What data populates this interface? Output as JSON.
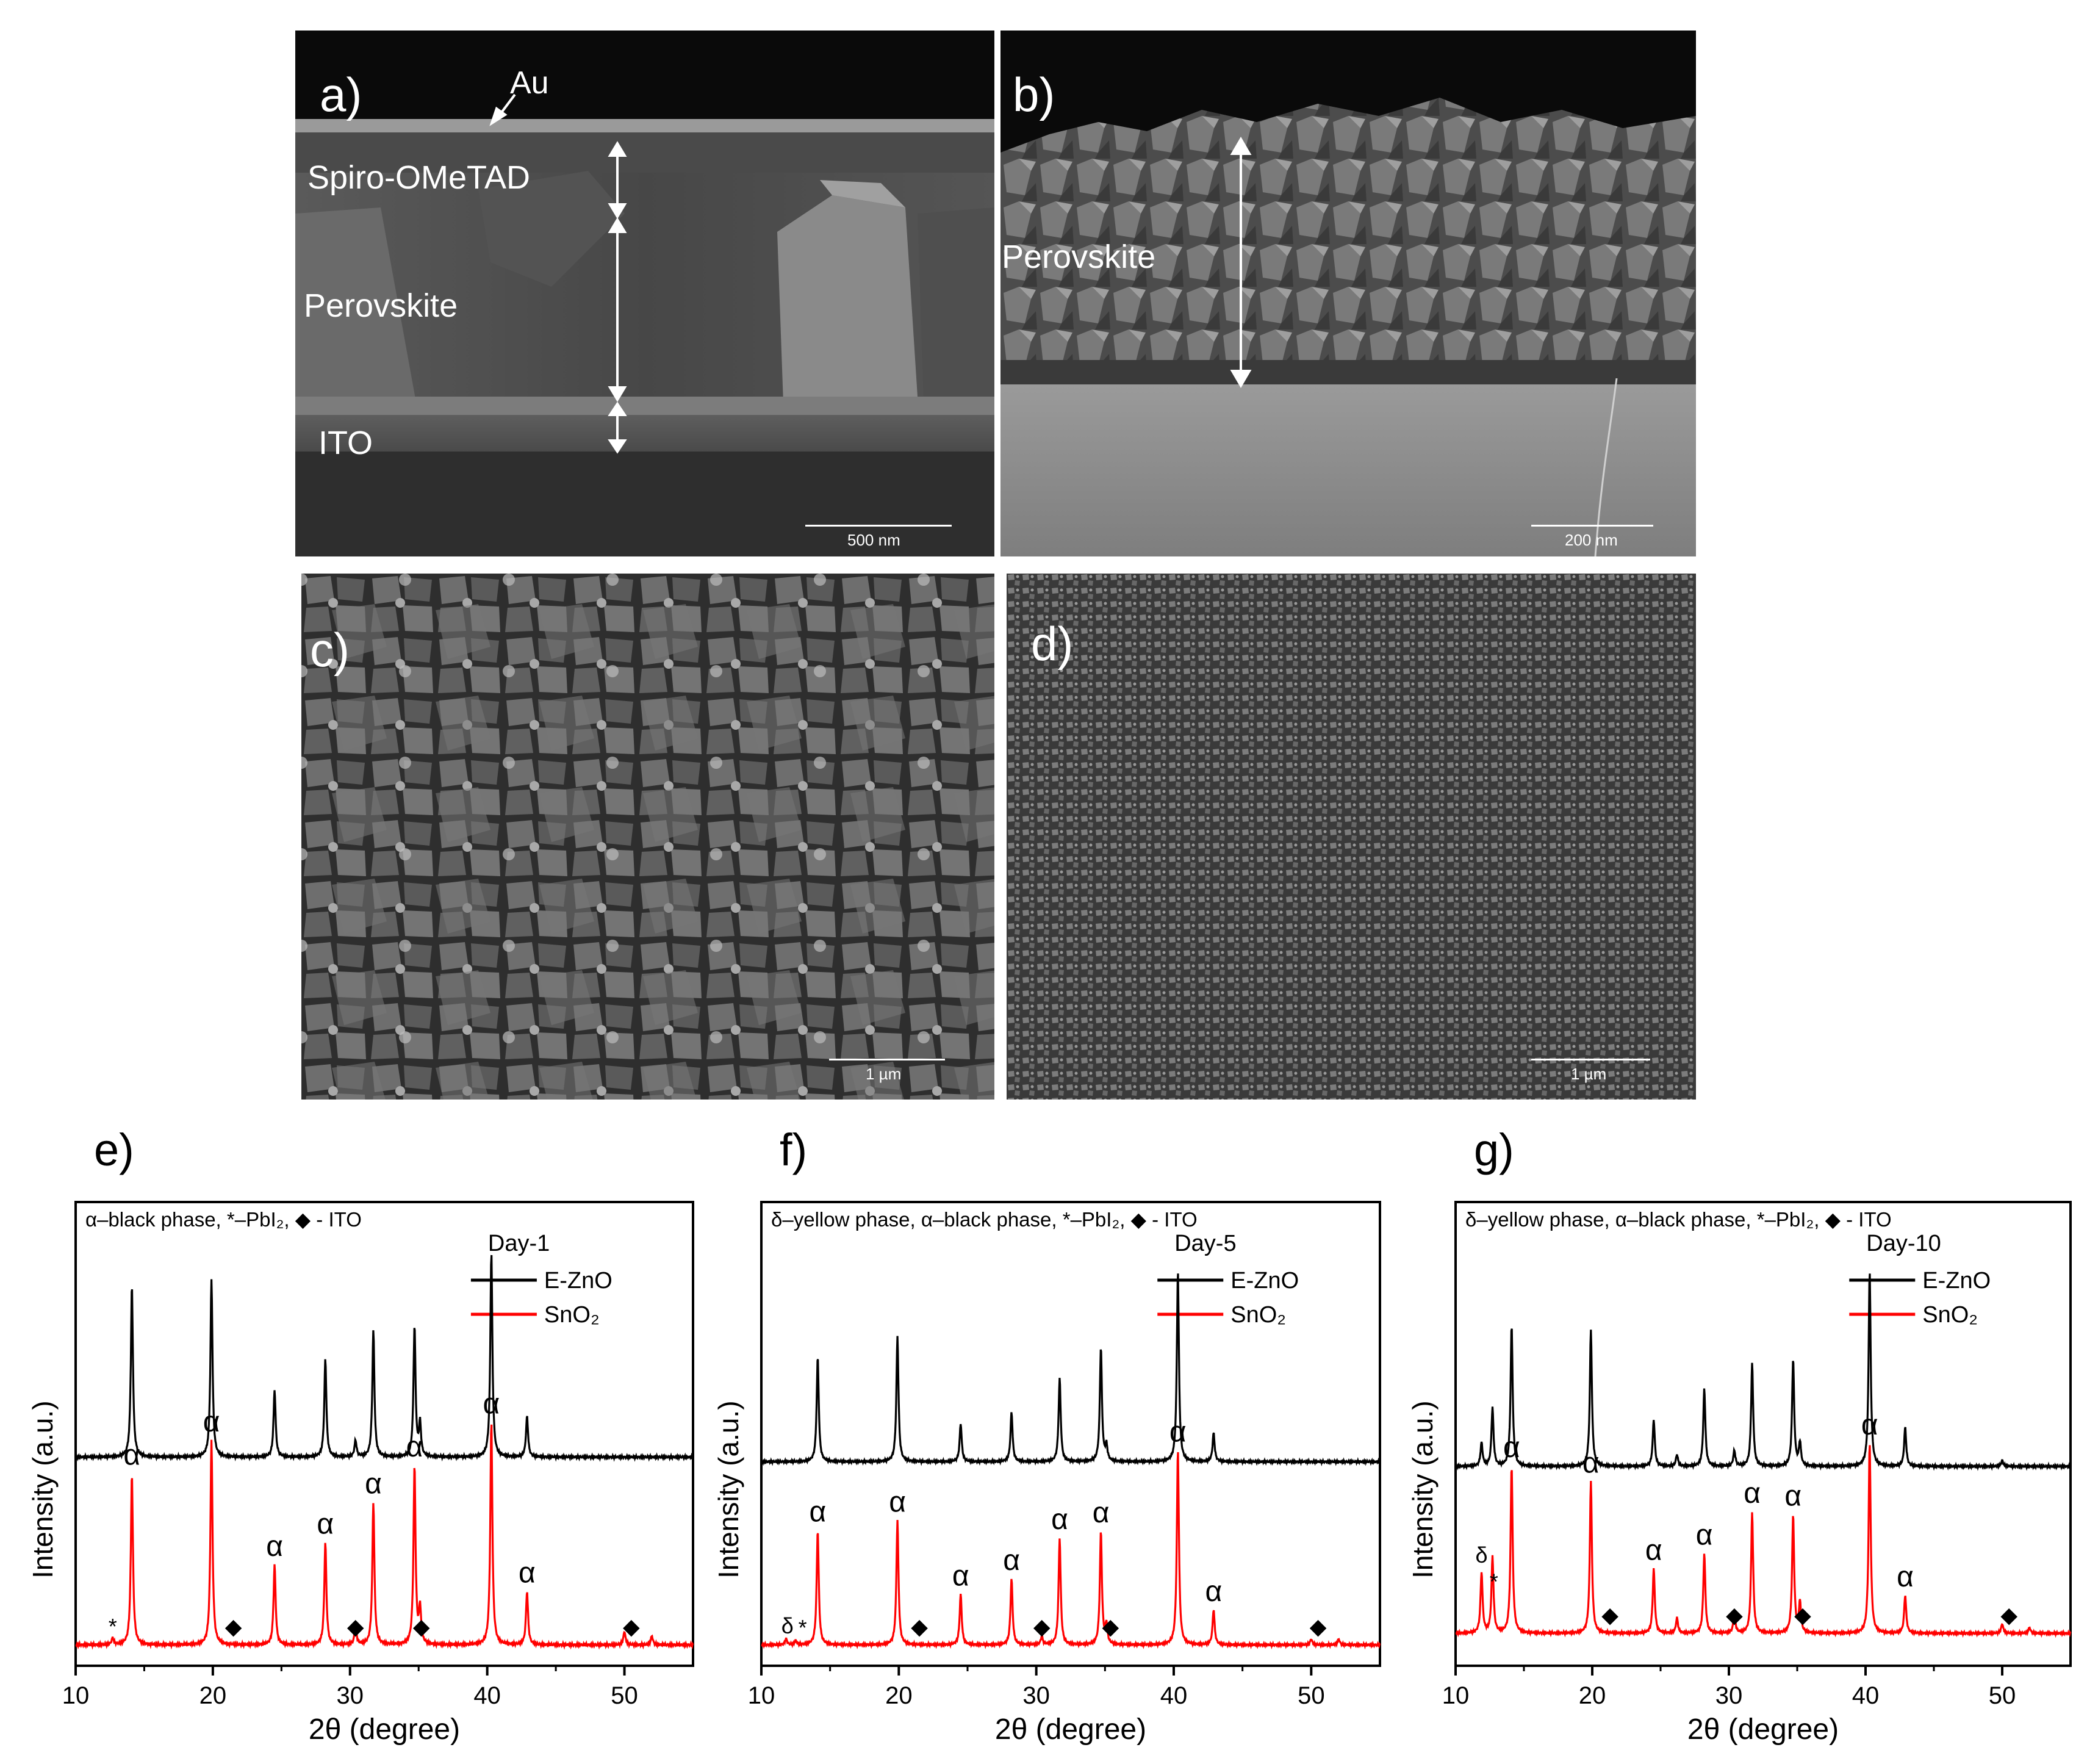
{
  "sem": {
    "a": {
      "label": "a)",
      "layers": [
        "Au",
        "Spiro-OMeTAD",
        "Perovskite",
        "ITO"
      ],
      "scalebar": "500 nm"
    },
    "b": {
      "label": "b)",
      "layers": [
        "Perovskite"
      ],
      "scalebar": "200 nm"
    },
    "c": {
      "label": "c)",
      "scalebar": "1 µm"
    },
    "d": {
      "label": "d)",
      "scalebar": "1 µm"
    }
  },
  "legend_names": [
    "E-ZnO",
    "SnO₂"
  ],
  "colors": {
    "e_zno": "#000000",
    "sno2": "#ff0000"
  },
  "chart_data": [
    {
      "panel": "e)",
      "type": "line",
      "annotation": "α–black phase, *–PbI₂, ◆ - ITO",
      "day_label": "Day-1",
      "xlabel": "2θ (degree)",
      "ylabel": "Intensity (a.u.)",
      "xlim": [
        10,
        55
      ],
      "xticks": [
        10,
        20,
        30,
        40,
        50
      ],
      "series": [
        {
          "name": "E-ZnO",
          "peaks": [
            [
              14.1,
              0.84
            ],
            [
              19.9,
              0.87
            ],
            [
              24.5,
              0.33
            ],
            [
              28.2,
              0.48
            ],
            [
              31.7,
              0.62
            ],
            [
              34.7,
              0.64
            ],
            [
              35.1,
              0.16
            ],
            [
              40.3,
              1.0
            ],
            [
              42.9,
              0.2
            ],
            [
              30.4,
              0.08
            ]
          ]
        },
        {
          "name": "SnO₂",
          "peaks": [
            [
              12.7,
              0.03
            ],
            [
              14.1,
              0.77
            ],
            [
              19.9,
              0.92
            ],
            [
              24.5,
              0.36
            ],
            [
              28.2,
              0.46
            ],
            [
              30.4,
              0.08
            ],
            [
              31.7,
              0.64
            ],
            [
              34.7,
              0.8
            ],
            [
              35.1,
              0.16
            ],
            [
              40.3,
              1.0
            ],
            [
              42.9,
              0.24
            ],
            [
              50.0,
              0.06
            ],
            [
              52.0,
              0.04
            ]
          ]
        }
      ],
      "markers": [
        {
          "symbol": "*",
          "x": 12.7
        },
        {
          "symbol": "α",
          "x": 14.1
        },
        {
          "symbol": "α",
          "x": 19.9
        },
        {
          "symbol": "◆",
          "x": 21.5
        },
        {
          "symbol": "α",
          "x": 24.5
        },
        {
          "symbol": "α",
          "x": 28.2
        },
        {
          "symbol": "◆",
          "x": 30.4
        },
        {
          "symbol": "α",
          "x": 31.7
        },
        {
          "symbol": "α",
          "x": 34.7
        },
        {
          "symbol": "◆",
          "x": 35.2
        },
        {
          "symbol": "α",
          "x": 40.3
        },
        {
          "symbol": "α",
          "x": 42.9
        },
        {
          "symbol": "◆",
          "x": 50.5
        }
      ]
    },
    {
      "panel": "f)",
      "type": "line",
      "annotation": "δ–yellow phase, α–black phase, *–PbI₂, ◆ - ITO",
      "day_label": "Day-5",
      "xlabel": "2θ (degree)",
      "ylabel": "Intensity (a.u.)",
      "xlim": [
        10,
        55
      ],
      "xticks": [
        10,
        20,
        30,
        40,
        50
      ],
      "series": [
        {
          "name": "E-ZnO",
          "peaks": [
            [
              14.1,
              0.55
            ],
            [
              19.9,
              0.66
            ],
            [
              24.5,
              0.2
            ],
            [
              28.2,
              0.26
            ],
            [
              31.7,
              0.44
            ],
            [
              34.7,
              0.6
            ],
            [
              35.1,
              0.08
            ],
            [
              40.3,
              1.0
            ],
            [
              42.9,
              0.15
            ]
          ]
        },
        {
          "name": "SnO₂",
          "peaks": [
            [
              11.8,
              0.03
            ],
            [
              12.5,
              0.02
            ],
            [
              14.1,
              0.59
            ],
            [
              19.9,
              0.64
            ],
            [
              24.5,
              0.26
            ],
            [
              28.2,
              0.34
            ],
            [
              30.4,
              0.04
            ],
            [
              31.7,
              0.55
            ],
            [
              34.7,
              0.58
            ],
            [
              35.1,
              0.1
            ],
            [
              40.3,
              1.0
            ],
            [
              42.9,
              0.18
            ],
            [
              50.0,
              0.03
            ],
            [
              52.0,
              0.03
            ]
          ]
        }
      ],
      "markers": [
        {
          "symbol": "δ",
          "x": 11.9
        },
        {
          "symbol": "*",
          "x": 13.0
        },
        {
          "symbol": "α",
          "x": 14.1
        },
        {
          "symbol": "α",
          "x": 19.9
        },
        {
          "symbol": "◆",
          "x": 21.5
        },
        {
          "symbol": "α",
          "x": 24.5
        },
        {
          "symbol": "α",
          "x": 28.2
        },
        {
          "symbol": "◆",
          "x": 30.4
        },
        {
          "symbol": "α",
          "x": 31.7
        },
        {
          "symbol": "α",
          "x": 34.7
        },
        {
          "symbol": "◆",
          "x": 35.4
        },
        {
          "symbol": "α",
          "x": 40.3
        },
        {
          "symbol": "α",
          "x": 42.9
        },
        {
          "symbol": "◆",
          "x": 50.5
        }
      ]
    },
    {
      "panel": "g)",
      "type": "line",
      "annotation": "δ–yellow phase, α–black phase, *–PbI₂, ◆ - ITO",
      "day_label": "Day-10",
      "xlabel": "2θ (degree)",
      "ylabel": "Intensity (a.u.)",
      "xlim": [
        10,
        55
      ],
      "xticks": [
        10,
        20,
        30,
        40,
        50
      ],
      "series": [
        {
          "name": "E-ZnO",
          "peaks": [
            [
              11.9,
              0.12
            ],
            [
              12.7,
              0.3
            ],
            [
              14.1,
              0.72
            ],
            [
              19.9,
              0.7
            ],
            [
              24.5,
              0.24
            ],
            [
              26.2,
              0.06
            ],
            [
              28.2,
              0.4
            ],
            [
              30.4,
              0.08
            ],
            [
              31.7,
              0.53
            ],
            [
              34.7,
              0.55
            ],
            [
              35.2,
              0.12
            ],
            [
              40.3,
              1.0
            ],
            [
              42.9,
              0.2
            ],
            [
              50.0,
              0.03
            ]
          ]
        },
        {
          "name": "SnO₂",
          "peaks": [
            [
              11.9,
              0.32
            ],
            [
              12.7,
              0.4
            ],
            [
              14.1,
              0.88
            ],
            [
              19.9,
              0.8
            ],
            [
              24.5,
              0.34
            ],
            [
              26.2,
              0.08
            ],
            [
              28.2,
              0.42
            ],
            [
              30.4,
              0.1
            ],
            [
              31.7,
              0.64
            ],
            [
              34.7,
              0.62
            ],
            [
              35.2,
              0.16
            ],
            [
              40.3,
              1.0
            ],
            [
              42.9,
              0.2
            ],
            [
              50.0,
              0.05
            ],
            [
              52.0,
              0.03
            ]
          ]
        }
      ],
      "markers": [
        {
          "symbol": "δ",
          "x": 11.9
        },
        {
          "symbol": "*",
          "x": 12.8
        },
        {
          "symbol": "α",
          "x": 14.1
        },
        {
          "symbol": "α",
          "x": 19.9
        },
        {
          "symbol": "◆",
          "x": 21.3
        },
        {
          "symbol": "α",
          "x": 24.5
        },
        {
          "symbol": "α",
          "x": 28.2
        },
        {
          "symbol": "◆",
          "x": 30.4
        },
        {
          "symbol": "α",
          "x": 31.7
        },
        {
          "symbol": "α",
          "x": 34.7
        },
        {
          "symbol": "◆",
          "x": 35.4
        },
        {
          "symbol": "α",
          "x": 40.3
        },
        {
          "symbol": "α",
          "x": 42.9
        },
        {
          "symbol": "◆",
          "x": 50.5
        }
      ]
    }
  ]
}
